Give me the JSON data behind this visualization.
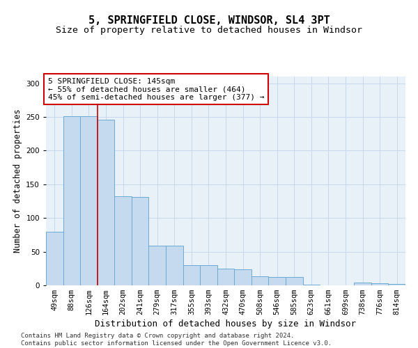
{
  "title": "5, SPRINGFIELD CLOSE, WINDSOR, SL4 3PT",
  "subtitle": "Size of property relative to detached houses in Windsor",
  "xlabel": "Distribution of detached houses by size in Windsor",
  "ylabel": "Number of detached properties",
  "categories": [
    "49sqm",
    "88sqm",
    "126sqm",
    "164sqm",
    "202sqm",
    "241sqm",
    "279sqm",
    "317sqm",
    "355sqm",
    "393sqm",
    "432sqm",
    "470sqm",
    "508sqm",
    "546sqm",
    "585sqm",
    "623sqm",
    "661sqm",
    "699sqm",
    "738sqm",
    "776sqm",
    "814sqm"
  ],
  "values": [
    80,
    251,
    251,
    246,
    132,
    131,
    59,
    59,
    30,
    30,
    25,
    24,
    13,
    12,
    12,
    1,
    0,
    0,
    4,
    3,
    2
  ],
  "bar_color": "#c5d9ef",
  "bar_edge_color": "#6aaad4",
  "bar_linewidth": 0.7,
  "vline_x_index": 2.5,
  "vline_color": "#cc0000",
  "annotation_text": "5 SPRINGFIELD CLOSE: 145sqm\n← 55% of detached houses are smaller (464)\n45% of semi-detached houses are larger (377) →",
  "annotation_box_color": "white",
  "annotation_box_edge_color": "#cc0000",
  "ylim": [
    0,
    310
  ],
  "yticks": [
    0,
    50,
    100,
    150,
    200,
    250,
    300
  ],
  "grid_color": "#c8d8ec",
  "background_color": "#e8f0f8",
  "footnote": "Contains HM Land Registry data © Crown copyright and database right 2024.\nContains public sector information licensed under the Open Government Licence v3.0.",
  "title_fontsize": 11,
  "subtitle_fontsize": 9.5,
  "xlabel_fontsize": 9,
  "ylabel_fontsize": 8.5,
  "tick_fontsize": 7.5,
  "annotation_fontsize": 8,
  "footnote_fontsize": 6.5
}
